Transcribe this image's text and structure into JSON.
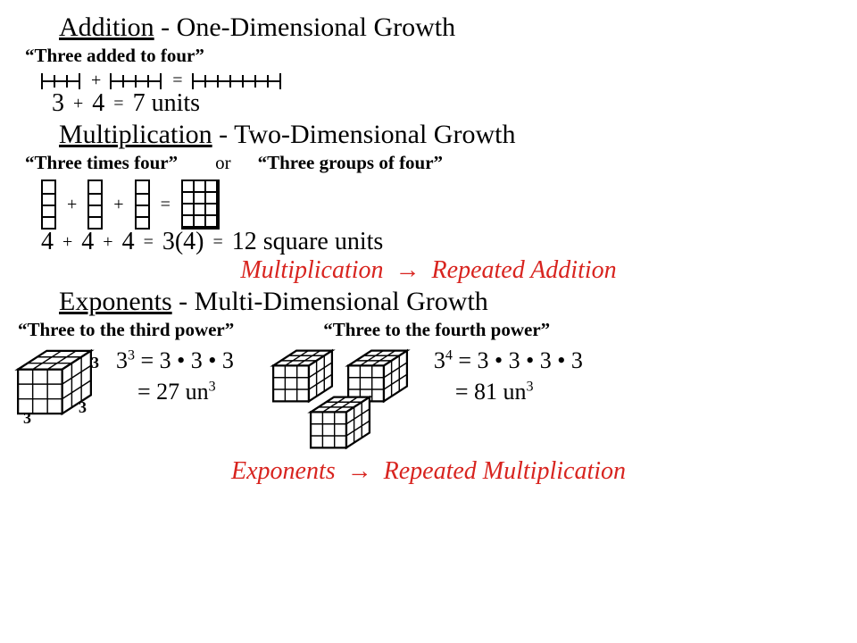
{
  "colors": {
    "text": "#000000",
    "accent": "#d8241f",
    "bg": "#ffffff"
  },
  "typography": {
    "title_fontsize": 30,
    "sub_fontsize": 21,
    "math_fontsize": 28,
    "red_fontsize": 28
  },
  "addition": {
    "heading_underlined": "Addition",
    "heading_rest": " - One-Dimensional Growth",
    "phrase": "“Three added to four”",
    "a": "3",
    "plus": "+",
    "b": "4",
    "eq": "=",
    "result": "7 units",
    "line_a": {
      "len": 3,
      "unit": 14
    },
    "line_b": {
      "len": 4,
      "unit": 14
    },
    "line_sum": {
      "len": 7,
      "unit": 14
    }
  },
  "multiplication": {
    "heading_underlined": "Multiplication",
    "heading_rest": " - Two-Dimensional Growth",
    "phrase_a": "“Three times four”",
    "or": "or",
    "phrase_b": "“Three groups of four”",
    "terms": {
      "t1": "4",
      "t2": "4",
      "t3": "4",
      "product_form": "3(4)",
      "result": "12 square units"
    },
    "ops": {
      "plus": "+",
      "eq": "="
    },
    "red": {
      "left": "Multiplication",
      "arrow": "→",
      "right": "Repeated Addition"
    },
    "grid": {
      "cols": 3,
      "rows": 4,
      "cell": 13
    }
  },
  "exponents": {
    "heading_underlined": "Exponents",
    "heading_rest": " - Multi-Dimensional Growth",
    "phrase_a": "“Three to the third power”",
    "phrase_b": "“Three to the fourth power”",
    "cube_dim_label": "3",
    "eq3": {
      "l1_base": "3",
      "l1_exp": "3",
      "l1_eq": " = 3 • 3 • 3",
      "l2": "= 27 un",
      "l2_exp": "3"
    },
    "eq4": {
      "l1_base": "3",
      "l1_exp": "4",
      "l1_eq": " = 3 • 3 • 3 • 3",
      "l2": "= 81 un",
      "l2_exp": "3"
    },
    "red": {
      "left": "Exponents",
      "arrow": "→",
      "right": "Repeated Multiplication"
    },
    "cube": {
      "n": 3,
      "cell": 14
    }
  }
}
